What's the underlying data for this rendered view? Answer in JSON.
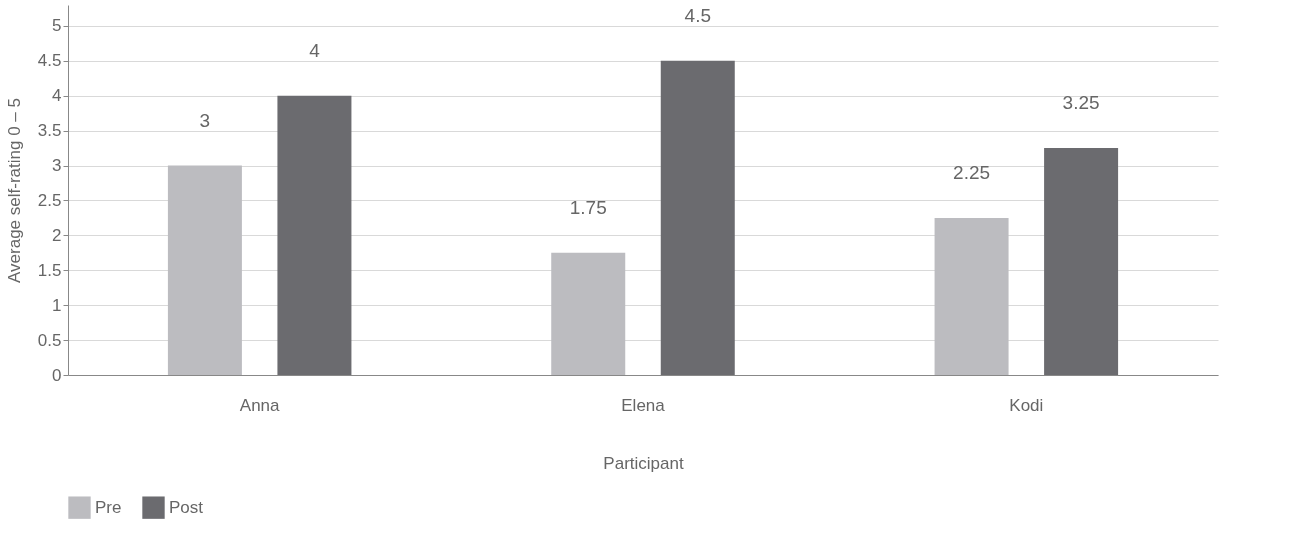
{
  "chart_data": {
    "type": "bar",
    "xlabel": "Participant",
    "ylabel": "Average self-rating 0 – 5",
    "categories": [
      "Anna",
      "Elena",
      "Kodi"
    ],
    "series": [
      {
        "name": "Pre",
        "color": "#bcbcc0",
        "values": [
          3,
          1.75,
          2.25
        ]
      },
      {
        "name": "Post",
        "color": "#6b6b6f",
        "values": [
          4,
          4.5,
          3.25
        ]
      }
    ],
    "ylim": [
      0,
      5.3
    ],
    "yticks": [
      0,
      0.5,
      1,
      1.5,
      2,
      2.5,
      3,
      3.5,
      4,
      4.5,
      5
    ],
    "grid": "y",
    "legend": "bottom left",
    "data_labels": true
  }
}
